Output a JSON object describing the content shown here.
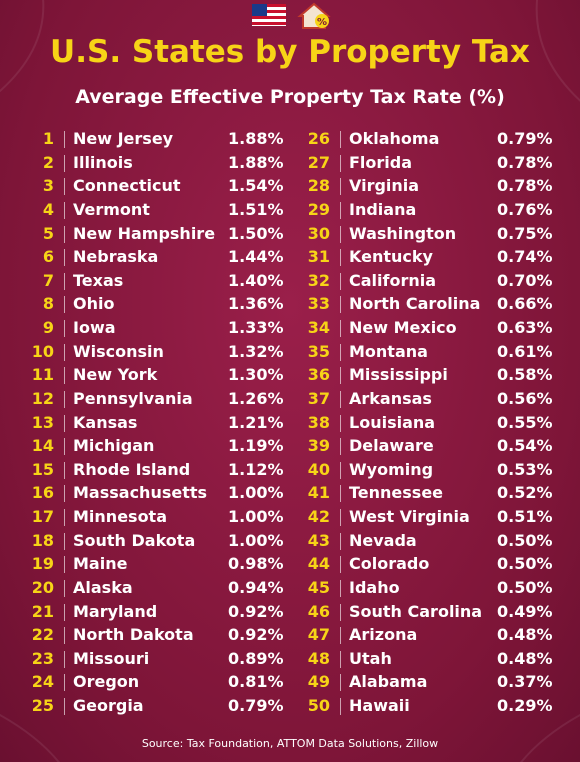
{
  "header": {
    "title": "U.S. States by Property Tax",
    "subtitle": "Average Effective Property Tax Rate (%)"
  },
  "table": {
    "rows": [
      [
        "1",
        "New Jersey",
        "1.88%"
      ],
      [
        "2",
        "Illinois",
        "1.88%"
      ],
      [
        "3",
        "Connecticut",
        "1.54%"
      ],
      [
        "4",
        "Vermont",
        "1.51%"
      ],
      [
        "5",
        "New Hampshire",
        "1.50%"
      ],
      [
        "6",
        "Nebraska",
        "1.44%"
      ],
      [
        "7",
        "Texas",
        "1.40%"
      ],
      [
        "8",
        "Ohio",
        "1.36%"
      ],
      [
        "9",
        "Iowa",
        "1.33%"
      ],
      [
        "10",
        "Wisconsin",
        "1.32%"
      ],
      [
        "11",
        "New York",
        "1.30%"
      ],
      [
        "12",
        "Pennsylvania",
        "1.26%"
      ],
      [
        "13",
        "Kansas",
        "1.21%"
      ],
      [
        "14",
        "Michigan",
        "1.19%"
      ],
      [
        "15",
        "Rhode Island",
        "1.12%"
      ],
      [
        "16",
        "Massachusetts",
        "1.00%"
      ],
      [
        "17",
        "Minnesota",
        "1.00%"
      ],
      [
        "18",
        "South Dakota",
        "1.00%"
      ],
      [
        "19",
        "Maine",
        "0.98%"
      ],
      [
        "20",
        "Alaska",
        "0.94%"
      ],
      [
        "21",
        "Maryland",
        "0.92%"
      ],
      [
        "22",
        "North Dakota",
        "0.92%"
      ],
      [
        "23",
        "Missouri",
        "0.89%"
      ],
      [
        "24",
        "Oregon",
        "0.81%"
      ],
      [
        "25",
        "Georgia",
        "0.79%"
      ],
      [
        "26",
        "Oklahoma",
        "0.79%"
      ],
      [
        "27",
        "Florida",
        "0.78%"
      ],
      [
        "28",
        "Virginia",
        "0.78%"
      ],
      [
        "29",
        "Indiana",
        "0.76%"
      ],
      [
        "30",
        "Washington",
        "0.75%"
      ],
      [
        "31",
        "Kentucky",
        "0.74%"
      ],
      [
        "32",
        "California",
        "0.70%"
      ],
      [
        "33",
        "North Carolina",
        "0.66%"
      ],
      [
        "34",
        "New Mexico",
        "0.63%"
      ],
      [
        "35",
        "Montana",
        "0.61%"
      ],
      [
        "36",
        "Mississippi",
        "0.58%"
      ],
      [
        "37",
        "Arkansas",
        "0.56%"
      ],
      [
        "38",
        "Louisiana",
        "0.55%"
      ],
      [
        "39",
        "Delaware",
        "0.54%"
      ],
      [
        "40",
        "Wyoming",
        "0.53%"
      ],
      [
        "41",
        "Tennessee",
        "0.52%"
      ],
      [
        "42",
        "West Virginia",
        "0.51%"
      ],
      [
        "43",
        "Nevada",
        "0.50%"
      ],
      [
        "44",
        "Colorado",
        "0.50%"
      ],
      [
        "45",
        "Idaho",
        "0.50%"
      ],
      [
        "46",
        "South Carolina",
        "0.49%"
      ],
      [
        "47",
        "Arizona",
        "0.48%"
      ],
      [
        "48",
        "Utah",
        "0.48%"
      ],
      [
        "49",
        "Alabama",
        "0.37%"
      ],
      [
        "50",
        "Hawaii",
        "0.29%"
      ]
    ]
  },
  "footer": {
    "source": "Source: Tax Foundation, ATTOM Data Solutions, Zillow"
  }
}
